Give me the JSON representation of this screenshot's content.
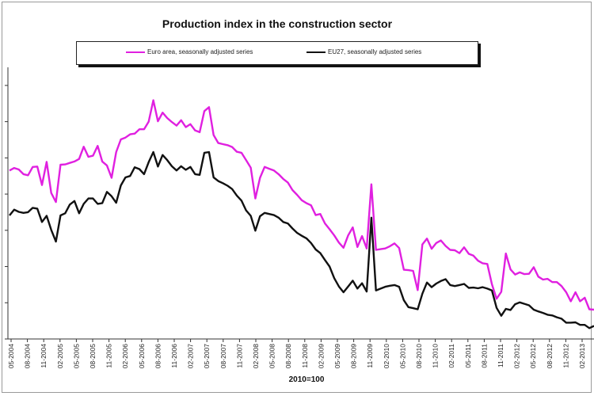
{
  "chart_data": {
    "type": "line",
    "title": "Production index in the construction sector",
    "caption": "2010=100",
    "x_tick_labels": [
      "05-2004",
      "08-2004",
      "11-2004",
      "02-2005",
      "05-2005",
      "08-2005",
      "11-2005",
      "02-2006",
      "05-2006",
      "08-2006",
      "11-2006",
      "02-2007",
      "05-2007",
      "08-2007",
      "11-2007",
      "02-2008",
      "05-2008",
      "08-2008",
      "11-2008",
      "02-2009",
      "05-2009",
      "08-2009",
      "11-2009",
      "02-2010",
      "05-2010",
      "08-2010",
      "11-2010",
      "02-2011",
      "05-2011",
      "08-2011",
      "11-2011",
      "02-2012",
      "05-2012",
      "08-2012",
      "11-2012",
      "02-2013"
    ],
    "ylim": [
      90,
      165
    ],
    "grid": false,
    "legend_position": "top",
    "series": [
      {
        "name": "Euro area, seasonally adjusted series",
        "color": "#e020e0",
        "values": [
          136.5,
          137.2,
          136.8,
          135.5,
          135.2,
          137.5,
          137.6,
          132.5,
          138.9,
          130.3,
          127.8,
          138.1,
          138.2,
          138.6,
          139.0,
          139.7,
          143.1,
          140.3,
          140.6,
          143.3,
          139.0,
          137.9,
          134.5,
          141.6,
          145.1,
          145.6,
          146.5,
          146.7,
          147.9,
          147.9,
          150.0,
          155.9,
          150.1,
          152.5,
          151.0,
          149.9,
          148.9,
          150.4,
          148.5,
          149.3,
          147.6,
          147.1,
          152.9,
          154.0,
          146.3,
          144.1,
          143.8,
          143.5,
          143.0,
          141.7,
          141.4,
          139.4,
          137.3,
          128.8,
          134.5,
          137.5,
          137.0,
          136.5,
          135.5,
          134.2,
          133.2,
          131.1,
          129.8,
          128.3,
          127.5,
          126.9,
          124.2,
          124.5,
          121.9,
          120.3,
          118.6,
          116.6,
          115.2,
          118.6,
          120.8,
          115.4,
          118.4,
          115.0,
          132.7,
          114.6,
          114.8,
          115.0,
          115.6,
          116.4,
          115.1,
          109.1,
          109.0,
          108.8,
          103.5,
          116.1,
          117.7,
          114.9,
          116.5,
          117.2,
          115.7,
          114.6,
          114.5,
          113.7,
          115.3,
          113.5,
          113.0,
          111.6,
          110.9,
          110.7,
          105.1,
          101.1,
          103.0,
          113.6,
          109.2,
          107.8,
          108.4,
          107.9,
          108.0,
          109.8,
          107.2,
          106.4,
          106.6,
          105.7,
          105.7,
          104.6,
          102.9,
          100.4,
          102.9,
          100.4,
          101.4,
          98.2,
          98.1
        ]
      },
      {
        "name": "EU27, seasonally adjusted series",
        "color": "#111111",
        "values": [
          124.1,
          125.7,
          125.1,
          124.8,
          125.0,
          126.2,
          126.0,
          122.3,
          124.0,
          120.1,
          116.9,
          124.1,
          124.7,
          127.1,
          128.1,
          124.7,
          127.3,
          128.8,
          128.8,
          127.3,
          127.5,
          130.6,
          129.4,
          127.6,
          132.4,
          134.6,
          135.0,
          137.4,
          136.9,
          135.5,
          138.8,
          141.6,
          137.6,
          140.8,
          139.4,
          137.7,
          136.5,
          137.7,
          136.7,
          137.5,
          135.5,
          135.3,
          141.4,
          141.6,
          134.6,
          133.6,
          133.0,
          132.3,
          131.4,
          129.6,
          128.2,
          125.5,
          124.0,
          119.9,
          123.9,
          124.8,
          124.5,
          124.2,
          123.5,
          122.3,
          121.9,
          120.5,
          119.3,
          118.5,
          117.8,
          116.5,
          114.7,
          113.7,
          111.8,
          110.0,
          106.8,
          104.5,
          102.9,
          104.5,
          106.1,
          103.9,
          105.4,
          103.1,
          123.5,
          103.4,
          103.9,
          104.4,
          104.7,
          104.9,
          104.4,
          100.7,
          98.8,
          98.5,
          98.2,
          102.5,
          105.6,
          104.3,
          105.3,
          106.0,
          106.5,
          104.9,
          104.6,
          104.9,
          105.2,
          104.1,
          104.2,
          104.0,
          104.3,
          103.9,
          103.4,
          98.6,
          96.4,
          98.3,
          98.0,
          99.6,
          100.1,
          99.7,
          99.3,
          98.1,
          97.6,
          97.2,
          96.7,
          96.5,
          96.0,
          95.6,
          94.5,
          94.5,
          94.6,
          93.9,
          93.9,
          93.0,
          93.6
        ]
      }
    ]
  }
}
